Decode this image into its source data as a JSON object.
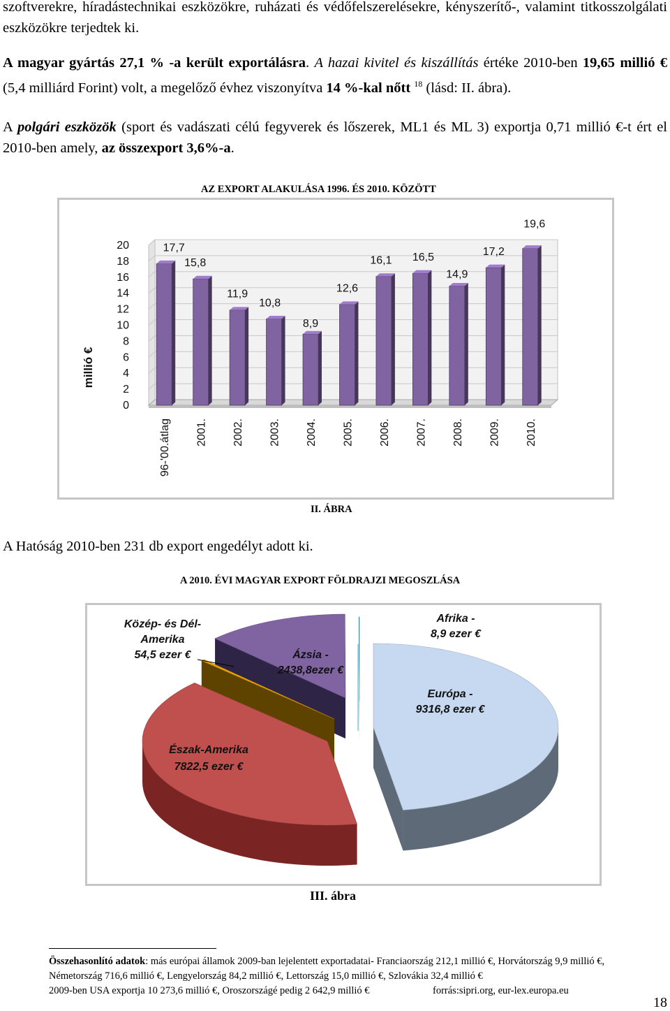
{
  "paragraphs": {
    "p0": "szoftverekre, híradástechnikai eszközökre, ruházati és védőfelszerelésekre, kényszerítő-, valamint titkosszolgálati eszközökre terjedtek ki.",
    "p1_b1": "A magyar gyártás 27,1 % -a került exportálásra",
    "p1_t1": ". ",
    "p1_i1": "A hazai kivitel és kiszállítás",
    "p1_t2": " értéke 2010-ben ",
    "p1_b2": "19,65 millió €",
    "p1_t3": " (5,4 milliárd Forint) volt, a megelőző évhez viszonyítva ",
    "p1_b3": "14 %-kal nőtt",
    "p1_sup": "18",
    "p1_t4": " (lásd: II. ábra).",
    "p2_t1": "A ",
    "p2_i1": "polgári eszközök",
    "p2_t2": " (sport és vadászati célú fegyverek és lőszerek, ML1 és ML 3) exportja 0,71 millió €-t ért el 2010-ben amely, ",
    "p2_b1": "az összexport 3,6%-a",
    "p2_t3": ".",
    "p3": "A Hatóság 2010-ben 231 db export engedélyt adott ki."
  },
  "captions": {
    "chart2_title": "AZ EXPORT ALAKULÁSA 1996. ÉS 2010. KÖZÖTT",
    "chart2_caption": "II. ÁBRA",
    "chart3_title": "A 2010. ÉVI MAGYAR EXPORT FÖLDRAJZI MEGOSZLÁSA",
    "chart3_caption": "III. ábra"
  },
  "chart_data": [
    {
      "type": "bar",
      "ylabel": "millió €",
      "ylim": [
        0,
        20
      ],
      "yticks": [
        "0",
        "2",
        "4",
        "6",
        "8",
        "10",
        "12",
        "14",
        "16",
        "18",
        "20"
      ],
      "categories": [
        "96-'00.átlag",
        "2001.",
        "2002.",
        "2003.",
        "2004.",
        "2005.",
        "2006.",
        "2007.",
        "2008.",
        "2009.",
        "2010."
      ],
      "values": [
        17.7,
        15.8,
        11.9,
        10.8,
        8.9,
        12.6,
        16.1,
        16.5,
        14.9,
        17.2,
        19.6
      ],
      "value_labels": [
        "17,7",
        "15,8",
        "11,9",
        "10,8",
        "8,9",
        "12,6",
        "16,1",
        "16,5",
        "14,9",
        "17,2",
        "19,6"
      ],
      "bar_color": "#8064a2"
    },
    {
      "type": "pie",
      "unit": "ezer €",
      "slices": [
        {
          "name": "Európa",
          "value": 9316.8,
          "label_lines": [
            "Európa -",
            "9316,8 ezer €"
          ],
          "color": "#c6d9f1",
          "side": "#5f6a78"
        },
        {
          "name": "Észak-Amerika",
          "value": 7822.5,
          "label_lines": [
            "Észak-Amerika",
            "7822,5 ezer €"
          ],
          "color": "#c0504d",
          "side": "#7a2523"
        },
        {
          "name": "Közép- és Dél-Amerika",
          "value": 54.5,
          "label_lines": [
            "Közép- és Dél-",
            "Amerika",
            "54,5 ezer €"
          ],
          "color": "#f2a900",
          "side": "#5e4300"
        },
        {
          "name": "Ázsia",
          "value": 2438.8,
          "label_lines": [
            "Ázsia -",
            "2438,8ezer €"
          ],
          "color": "#8064a2",
          "side": "#2e2445"
        },
        {
          "name": "Afrika",
          "value": 8.9,
          "label_lines": [
            "Afrika -",
            "8,9 ezer €"
          ],
          "color": "#4bacc6",
          "side": "#2a6373"
        }
      ]
    }
  ],
  "footnote": {
    "l1_bold": "Összehasonlító adatok",
    "l1": ": más európai államok 2009-ban lejelentett exportadatai- Franciaország 212,1 millió €, Horvátország 9,9 millió €,",
    "l2": "Németország 716,6 millió €, Lengyelország 84,2 millió €, Lettország 15,0 millió €, Szlovákia 32,4 millió €",
    "l3a": "2009-ben USA exportja 10 273,6 millió €, Oroszországé pedig 2 642,9 millió €",
    "l3b": "forrás:sipri.org, eur-lex.europa.eu"
  },
  "page_number": "18"
}
